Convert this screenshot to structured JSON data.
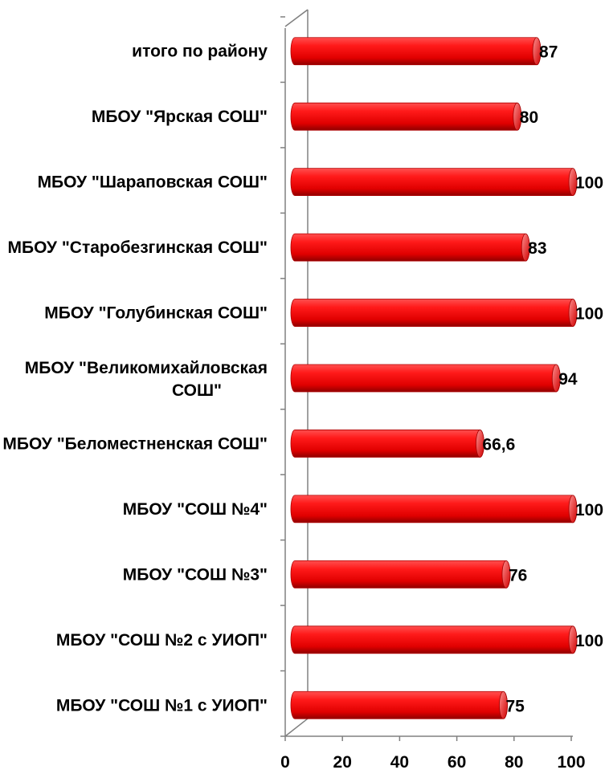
{
  "chart_data": {
    "type": "bar",
    "orientation": "horizontal",
    "style": "3d-cylinder",
    "categories": [
      "МБОУ \"СОШ №1 с УИОП\"",
      "МБОУ \"СОШ №2 с УИОП\"",
      "МБОУ \"СОШ №3\"",
      "МБОУ \"СОШ №4\"",
      "МБОУ \"Беломестненская СОШ\"",
      "МБОУ \"Великомихайловская СОШ\"",
      "МБОУ \"Голубинская СОШ\"",
      "МБОУ \"Старобезгинская СОШ\"",
      "МБОУ \"Шараповская  СОШ\"",
      "МБОУ \"Ярская СОШ\"",
      "итого по району"
    ],
    "values": [
      75,
      100,
      76,
      100,
      66.6,
      94,
      100,
      83,
      100,
      80,
      87
    ],
    "value_labels": [
      "75",
      "100",
      "76",
      "100",
      "66,6",
      "94",
      "100",
      "83",
      "100",
      "80",
      "87"
    ],
    "xlim": [
      0,
      100
    ],
    "x_ticks": [
      "0",
      "20",
      "40",
      "60",
      "80",
      "100"
    ],
    "title": "",
    "xlabel": "",
    "ylabel": "",
    "grid": false,
    "legend": "none",
    "bar_color": "#ff0000",
    "bar_dark_color": "#8b0000",
    "bar_light_color": "#ff8080"
  }
}
